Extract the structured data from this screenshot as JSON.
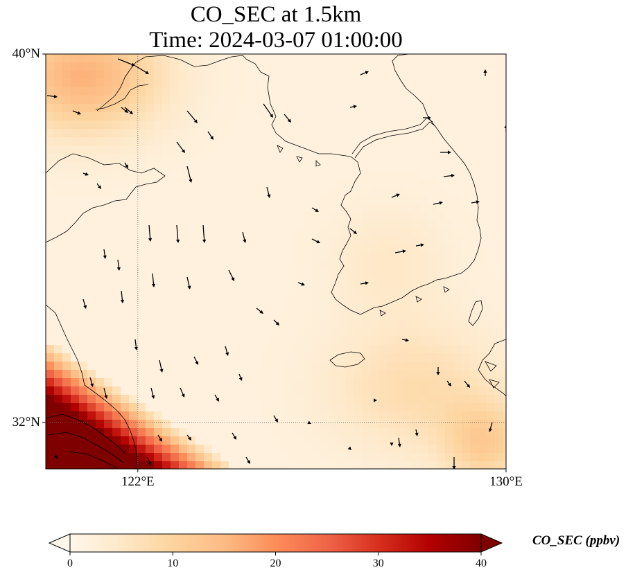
{
  "map": {
    "title_line1": "CO_SEC at 1.5km",
    "title_line2": "Time: 2024-03-07 01:00:00",
    "extent": {
      "lon_min": 120,
      "lon_max": 130,
      "lat_min": 31,
      "lat_max": 40
    },
    "lat_ticks": [
      {
        "value": 40,
        "label": "40°N"
      },
      {
        "value": 32,
        "label": "32°N"
      }
    ],
    "lon_ticks": [
      {
        "value": 122,
        "label": "122°E"
      },
      {
        "value": 130,
        "label": "130°E"
      }
    ],
    "gridlines": {
      "lons": [
        122
      ],
      "lats": [
        32
      ],
      "style": "dotted"
    },
    "variable": "CO_SEC",
    "units": "ppbv"
  },
  "colorbar": {
    "label": "CO_SEC (ppbv)",
    "min": 0,
    "max": 40,
    "ticks": [
      "0",
      "10",
      "20",
      "30",
      "40"
    ],
    "colormap": "OrRd",
    "stops": [
      "#fff7ec",
      "#fee8c8",
      "#fdd49e",
      "#fdbb84",
      "#fc8d59",
      "#ef6548",
      "#d7301f",
      "#b30000",
      "#7f0000"
    ],
    "extend": "both"
  },
  "style": {
    "land_outline": "#000000",
    "background": "#fff7ec"
  }
}
